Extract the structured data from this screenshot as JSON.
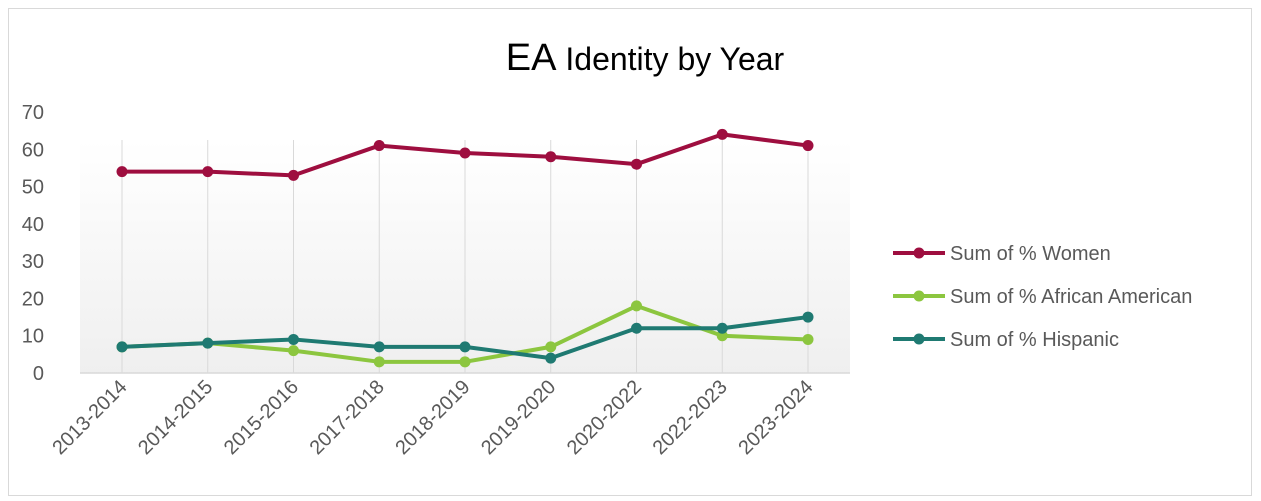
{
  "chart_data": {
    "type": "line",
    "title_prefix": "EA",
    "title_rest": " Identity by Year",
    "xlabel": "",
    "ylabel": "",
    "categories": [
      "2013-2014",
      "2014-2015",
      "2015-2016",
      "2017-2018",
      "2018-2019",
      "2019-2020",
      "2020-2022",
      "2022-2023",
      "2023-2024"
    ],
    "ylim": [
      0,
      70
    ],
    "yticks": [
      0,
      10,
      20,
      30,
      40,
      50,
      60,
      70
    ],
    "grid": "vertical",
    "legend_position": "right",
    "series": [
      {
        "name": "Sum of % Women",
        "color": "#9e0e3f",
        "values": [
          54,
          54,
          53,
          61,
          59,
          58,
          56,
          64,
          61
        ]
      },
      {
        "name": "Sum of % African American",
        "color": "#8cc63f",
        "values": [
          7,
          8,
          6,
          3,
          3,
          7,
          18,
          10,
          9
        ]
      },
      {
        "name": "Sum of % Hispanic",
        "color": "#1f7a72",
        "values": [
          7,
          8,
          9,
          7,
          7,
          4,
          12,
          12,
          15
        ]
      }
    ]
  }
}
